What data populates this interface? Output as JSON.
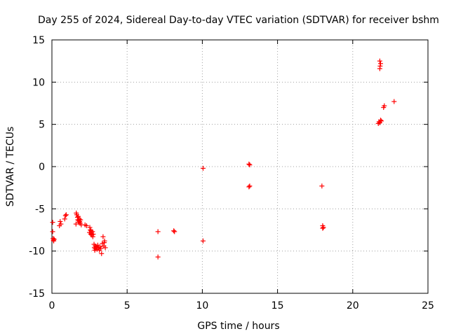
{
  "chart_data": {
    "type": "scatter",
    "title": "Day 255 of 2024, Sidereal Day-to-day VTEC variation (SDTVAR) for receiver bshm",
    "xlabel": "GPS time / hours",
    "ylabel": "SDTVAR / TECUs",
    "xlim": [
      0,
      25
    ],
    "ylim": [
      -15,
      15
    ],
    "xticks": [
      0,
      5,
      10,
      15,
      20,
      25
    ],
    "yticks": [
      -15,
      -10,
      -5,
      0,
      5,
      10,
      15
    ],
    "grid": true,
    "marker": "+",
    "series": [
      {
        "name": "SDTVAR",
        "color": "#ff0000",
        "x": [
          0.05,
          0.05,
          0.08,
          0.1,
          0.12,
          0.15,
          0.5,
          0.55,
          0.6,
          0.85,
          0.9,
          0.95,
          1.6,
          1.62,
          1.65,
          1.7,
          1.72,
          1.75,
          1.78,
          1.8,
          1.82,
          1.85,
          1.88,
          1.9,
          1.95,
          2.2,
          2.3,
          2.5,
          2.52,
          2.55,
          2.58,
          2.6,
          2.62,
          2.65,
          2.7,
          2.72,
          2.75,
          2.8,
          2.82,
          2.85,
          2.88,
          2.9,
          2.95,
          3.0,
          3.05,
          3.1,
          3.15,
          3.2,
          3.25,
          3.3,
          3.35,
          3.4,
          3.45,
          3.48,
          3.5,
          3.55,
          7.05,
          7.05,
          8.1,
          8.15,
          10.05,
          10.05,
          13.1,
          13.15,
          13.1,
          13.15,
          17.95,
          18.0,
          18.05,
          18.0,
          21.7,
          21.75,
          21.8,
          21.85,
          21.9,
          21.8,
          21.82,
          21.85,
          21.8,
          22.05,
          22.1,
          22.75
        ],
        "y": [
          -6.6,
          -7.7,
          -8.5,
          -8.7,
          -8.8,
          -8.6,
          -7.0,
          -6.5,
          -6.8,
          -6.2,
          -5.8,
          -5.7,
          -6.8,
          -5.5,
          -5.7,
          -6.0,
          -6.3,
          -5.9,
          -6.4,
          -6.6,
          -6.2,
          -6.5,
          -6.7,
          -6.3,
          -6.9,
          -6.9,
          -7.0,
          -7.8,
          -7.2,
          -7.5,
          -8.0,
          -7.6,
          -7.9,
          -8.1,
          -7.7,
          -8.3,
          -8.0,
          -9.2,
          -9.6,
          -9.9,
          -9.4,
          -9.7,
          -9.5,
          -9.8,
          -9.3,
          -9.6,
          -9.9,
          -9.5,
          -9.7,
          -10.3,
          -9.1,
          -8.3,
          -9.4,
          -9.0,
          -8.8,
          -9.6,
          -7.7,
          -10.7,
          -7.6,
          -7.7,
          -0.2,
          -8.8,
          0.3,
          0.2,
          -2.4,
          -2.3,
          -2.3,
          -7.0,
          -7.2,
          -7.3,
          5.1,
          5.3,
          5.2,
          5.5,
          5.4,
          11.6,
          11.9,
          12.2,
          12.5,
          7.0,
          7.2,
          7.7
        ]
      }
    ]
  }
}
